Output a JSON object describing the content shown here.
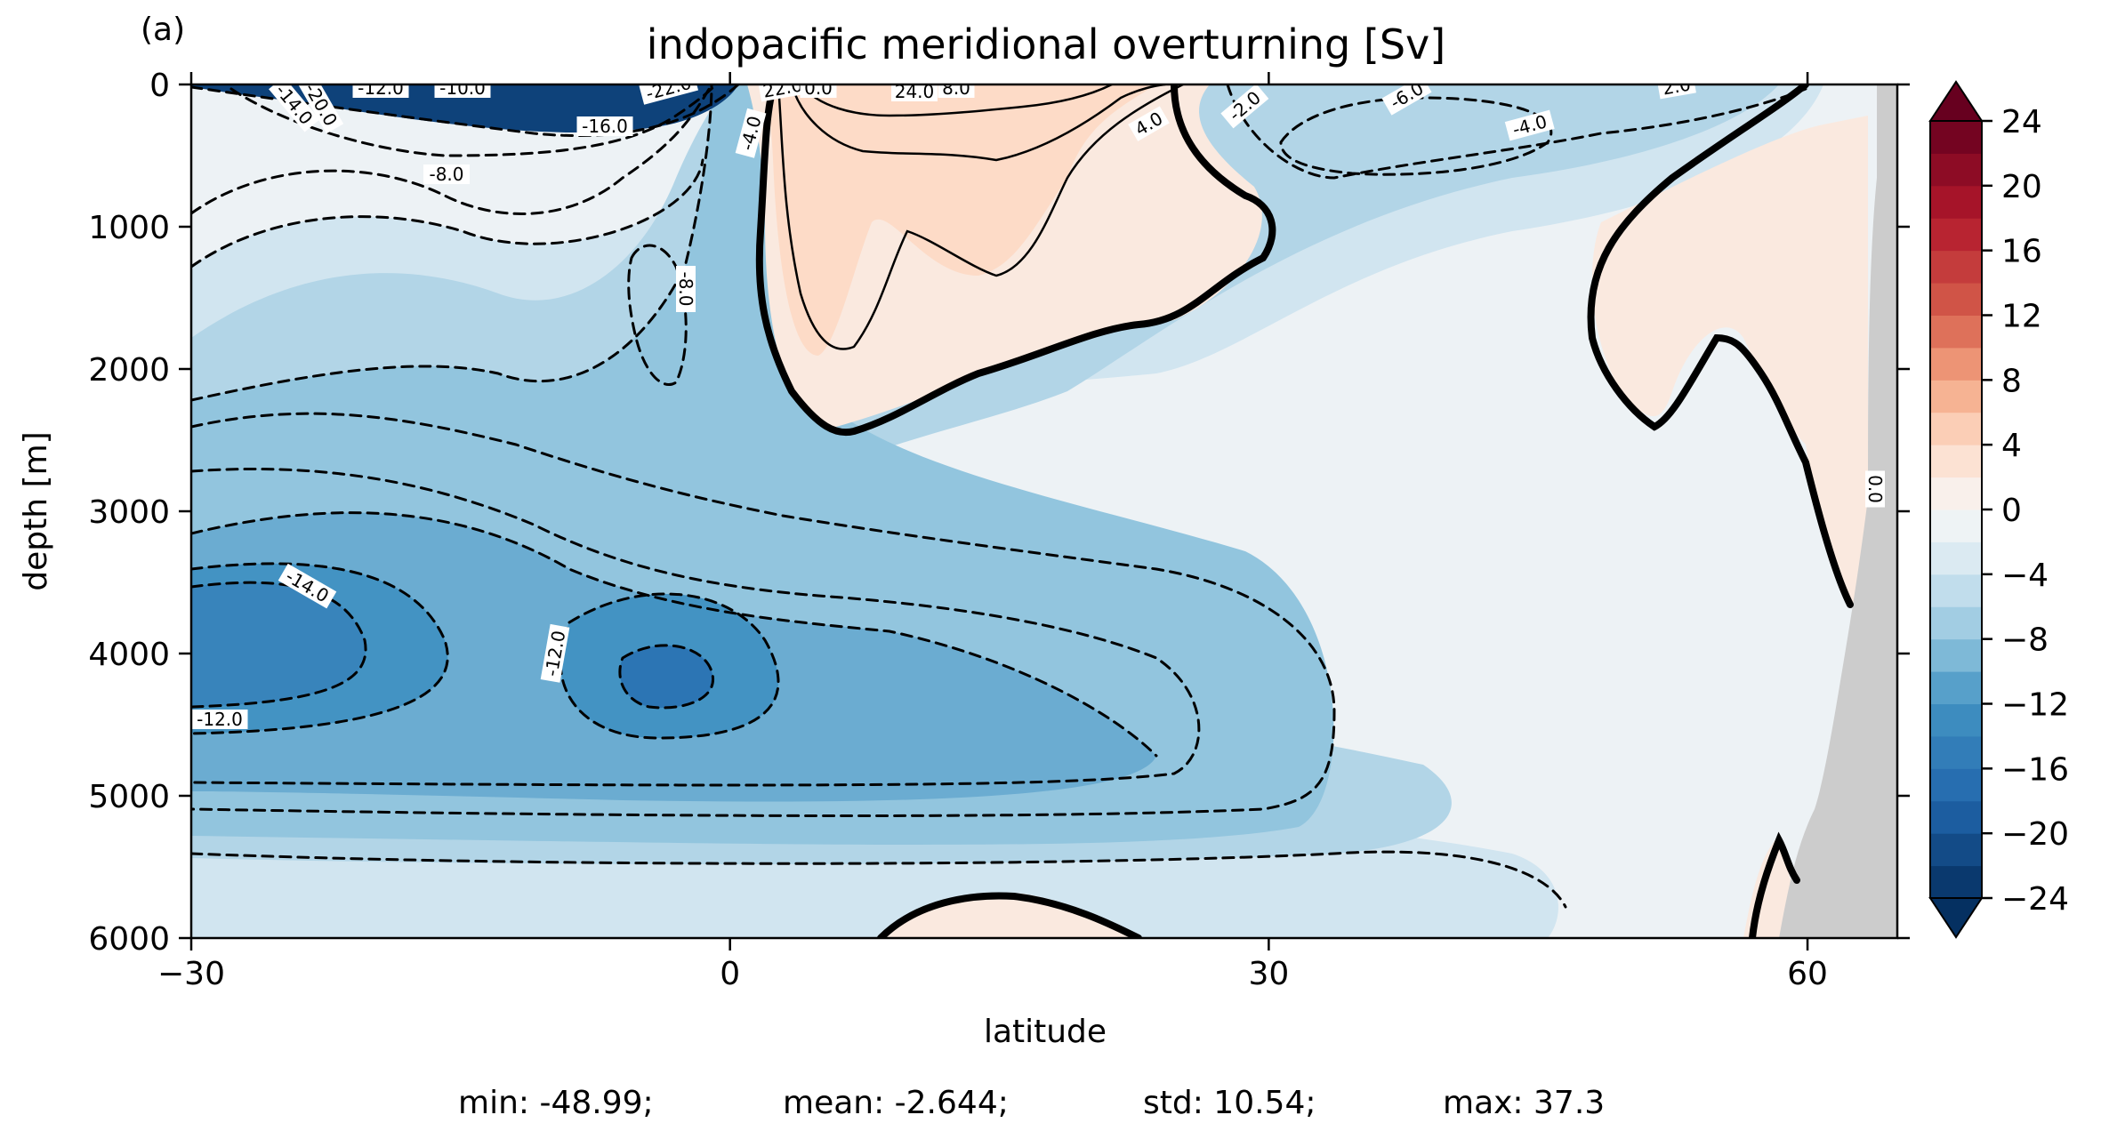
{
  "chart_data": {
    "type": "contour",
    "panel_label": "(a)",
    "title": "indopacific meridional overturning [Sv]",
    "xlabel": "latitude",
    "ylabel": "depth [m]",
    "xlim": [
      -30,
      65
    ],
    "ylim": [
      6000,
      0
    ],
    "xticks": [
      -30,
      0,
      30,
      60
    ],
    "xtick_labels": [
      "−30",
      "0",
      "30",
      "60"
    ],
    "yticks": [
      0,
      1000,
      2000,
      3000,
      4000,
      5000,
      6000
    ],
    "ytick_labels": [
      "0",
      "1000",
      "2000",
      "3000",
      "4000",
      "5000",
      "6000"
    ],
    "colorbar": {
      "levels": [
        -24,
        -22,
        -20,
        -18,
        -16,
        -14,
        -12,
        -10,
        -8,
        -6,
        -4,
        -2,
        0,
        2,
        4,
        6,
        8,
        10,
        12,
        14,
        16,
        18,
        20,
        22,
        24
      ],
      "ticks": [
        24,
        20,
        16,
        12,
        8,
        4,
        0,
        -4,
        -8,
        -12,
        -16,
        -20,
        -24
      ],
      "tick_labels": [
        "24",
        "20",
        "16",
        "12",
        "8",
        "4",
        "0",
        "−4",
        "−8",
        "−12",
        "−16",
        "−20",
        "−24"
      ],
      "extend": "both",
      "colormap": "RdBu_r"
    },
    "contour_labels": [
      "-12.0",
      "-10.0",
      "-14.0",
      "-20.0",
      "-22.0",
      "-16.0",
      "-8.0",
      "-4.0",
      "22.0",
      "0.0",
      "24.0",
      "8.0",
      "-8.0",
      "4.0",
      "-2.0",
      "-6.0",
      "-4.0",
      "2.0",
      "0.0",
      "-14.0",
      "-12.0",
      "-12.0"
    ],
    "zero_contour_style": "thick solid",
    "negative_contour_style": "dashed",
    "positive_contour_style": "solid",
    "land_color": "#cccccc",
    "stats": {
      "min": "min: -48.99;",
      "mean": "mean: -2.644;",
      "std": "std: 10.54;",
      "max": "max: 37.3"
    }
  }
}
